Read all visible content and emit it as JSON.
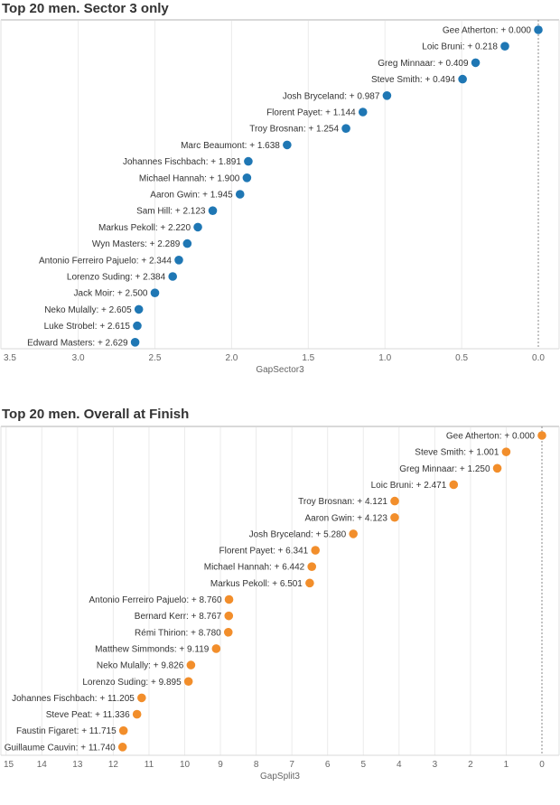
{
  "chart_data": [
    {
      "type": "scatter",
      "title": "Top 20 men. Sector 3 only",
      "xlabel": "GapSector3",
      "ylabel": "",
      "xlim": [
        3.5,
        0.0
      ],
      "x_reversed": true,
      "x_ticks": [
        "3.5",
        "3.0",
        "2.5",
        "2.0",
        "1.5",
        "1.0",
        "0.5",
        "0.0"
      ],
      "x_tick_values": [
        3.5,
        3.0,
        2.5,
        2.0,
        1.5,
        1.0,
        0.5,
        0.0
      ],
      "grid": true,
      "reference_line": 0.0,
      "color": "#1f77b4",
      "points": [
        {
          "name": "Gee Atherton",
          "value": 0.0,
          "label": "Gee Atherton: + 0.000"
        },
        {
          "name": "Loic Bruni",
          "value": 0.218,
          "label": "Loic Bruni: + 0.218"
        },
        {
          "name": "Greg Minnaar",
          "value": 0.409,
          "label": "Greg Minnaar: + 0.409"
        },
        {
          "name": "Steve Smith",
          "value": 0.494,
          "label": "Steve Smith: + 0.494"
        },
        {
          "name": "Josh Bryceland",
          "value": 0.987,
          "label": "Josh Bryceland: + 0.987"
        },
        {
          "name": "Florent Payet",
          "value": 1.144,
          "label": "Florent Payet: + 1.144"
        },
        {
          "name": "Troy Brosnan",
          "value": 1.254,
          "label": "Troy Brosnan: + 1.254"
        },
        {
          "name": "Marc Beaumont",
          "value": 1.638,
          "label": "Marc Beaumont: + 1.638"
        },
        {
          "name": "Johannes Fischbach",
          "value": 1.891,
          "label": "Johannes Fischbach: + 1.891"
        },
        {
          "name": "Michael Hannah",
          "value": 1.9,
          "label": "Michael Hannah: + 1.900"
        },
        {
          "name": "Aaron Gwin",
          "value": 1.945,
          "label": "Aaron Gwin: + 1.945"
        },
        {
          "name": "Sam Hill",
          "value": 2.123,
          "label": "Sam Hill: + 2.123"
        },
        {
          "name": "Markus Pekoll",
          "value": 2.22,
          "label": "Markus Pekoll: + 2.220"
        },
        {
          "name": "Wyn Masters",
          "value": 2.289,
          "label": "Wyn Masters: + 2.289"
        },
        {
          "name": "Antonio Ferreiro Pajuelo",
          "value": 2.344,
          "label": "Antonio Ferreiro Pajuelo: + 2.344"
        },
        {
          "name": "Lorenzo Suding",
          "value": 2.384,
          "label": "Lorenzo Suding: + 2.384"
        },
        {
          "name": "Jack Moir",
          "value": 2.5,
          "label": "Jack Moir: + 2.500"
        },
        {
          "name": "Neko Mulally",
          "value": 2.605,
          "label": "Neko Mulally: + 2.605"
        },
        {
          "name": "Luke Strobel",
          "value": 2.615,
          "label": "Luke Strobel: + 2.615"
        },
        {
          "name": "Edward Masters",
          "value": 2.629,
          "label": "Edward Masters: + 2.629"
        }
      ]
    },
    {
      "type": "scatter",
      "title": "Top 20 men. Overall at Finish",
      "xlabel": "GapSplit3",
      "ylabel": "",
      "xlim": [
        15,
        0
      ],
      "x_reversed": true,
      "x_ticks": [
        "15",
        "14",
        "13",
        "12",
        "11",
        "10",
        "9",
        "8",
        "7",
        "6",
        "5",
        "4",
        "3",
        "2",
        "1",
        "0"
      ],
      "x_tick_values": [
        15,
        14,
        13,
        12,
        11,
        10,
        9,
        8,
        7,
        6,
        5,
        4,
        3,
        2,
        1,
        0
      ],
      "grid": true,
      "reference_line": 0,
      "color": "#f28e2b",
      "points": [
        {
          "name": "Gee Atherton",
          "value": 0.0,
          "label": "Gee Atherton: + 0.000"
        },
        {
          "name": "Steve Smith",
          "value": 1.001,
          "label": "Steve Smith: + 1.001"
        },
        {
          "name": "Greg Minnaar",
          "value": 1.25,
          "label": "Greg Minnaar: + 1.250"
        },
        {
          "name": "Loic Bruni",
          "value": 2.471,
          "label": "Loic Bruni: + 2.471"
        },
        {
          "name": "Troy Brosnan",
          "value": 4.121,
          "label": "Troy Brosnan: + 4.121"
        },
        {
          "name": "Aaron Gwin",
          "value": 4.123,
          "label": "Aaron Gwin: + 4.123"
        },
        {
          "name": "Josh Bryceland",
          "value": 5.28,
          "label": "Josh Bryceland: + 5.280"
        },
        {
          "name": "Florent Payet",
          "value": 6.341,
          "label": "Florent Payet: + 6.341"
        },
        {
          "name": "Michael Hannah",
          "value": 6.442,
          "label": "Michael Hannah: + 6.442"
        },
        {
          "name": "Markus Pekoll",
          "value": 6.501,
          "label": "Markus Pekoll: + 6.501"
        },
        {
          "name": "Antonio Ferreiro Pajuelo",
          "value": 8.76,
          "label": "Antonio Ferreiro Pajuelo: + 8.760"
        },
        {
          "name": "Bernard Kerr",
          "value": 8.767,
          "label": "Bernard Kerr: + 8.767"
        },
        {
          "name": "Rémi Thirion",
          "value": 8.78,
          "label": "Rémi Thirion: + 8.780"
        },
        {
          "name": "Matthew Simmonds",
          "value": 9.119,
          "label": "Matthew Simmonds: + 9.119"
        },
        {
          "name": "Neko Mulally",
          "value": 9.826,
          "label": "Neko Mulally: + 9.826"
        },
        {
          "name": "Lorenzo Suding",
          "value": 9.895,
          "label": "Lorenzo Suding: + 9.895"
        },
        {
          "name": "Johannes Fischbach",
          "value": 11.205,
          "label": "Johannes Fischbach: + 11.205"
        },
        {
          "name": "Steve Peat",
          "value": 11.336,
          "label": "Steve Peat: + 11.336"
        },
        {
          "name": "Faustin Figaret",
          "value": 11.715,
          "label": "Faustin Figaret: + 11.715"
        },
        {
          "name": "Guillaume Cauvin",
          "value": 11.74,
          "label": "Guillaume Cauvin: + 11.740"
        }
      ]
    }
  ]
}
